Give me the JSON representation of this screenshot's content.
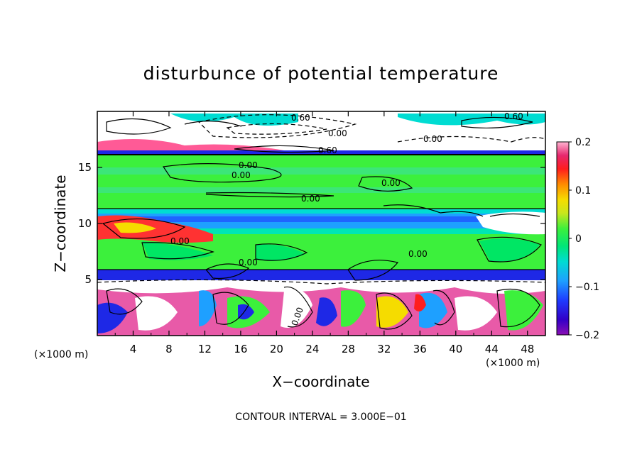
{
  "chart_data": {
    "type": "heatmap",
    "title": "disturbunce of potential temperature",
    "xlabel": "X−coordinate",
    "ylabel": "Z−coordinate",
    "x_unit": "(×1000 m)",
    "xlim": [
      0,
      50
    ],
    "ylim": [
      0,
      20
    ],
    "x_ticks": [
      "4",
      "8",
      "12",
      "16",
      "20",
      "24",
      "28",
      "32",
      "36",
      "40",
      "44",
      "48"
    ],
    "y_ticks": [
      "5",
      "10",
      "15"
    ],
    "colorbar": {
      "range": [
        -0.2,
        0.2
      ],
      "tick_labels": [
        "0.2",
        "0.1",
        "0",
        "−0.1",
        "−0.2"
      ],
      "colors": [
        "#8a0fb4",
        "#4b00b4",
        "#1e1ee6",
        "#1e64ff",
        "#1ea0ff",
        "#00d2e6",
        "#00e6b4",
        "#00e664",
        "#46f03c",
        "#a0e632",
        "#e6e600",
        "#fad200",
        "#ffa000",
        "#ff6400",
        "#ff1e1e",
        "#e6146e",
        "#ff5a96",
        "#ffa0c8"
      ]
    },
    "contour_labels": [
      "0.60",
      "0.00",
      "0.60",
      "0.60",
      "0.00",
      "0.00",
      "0.00",
      "0.00",
      "0.00",
      "0.00",
      "0.00",
      "0.00",
      "0.00"
    ],
    "contour_interval": "CONTOUR INTERVAL = 3.000E−01"
  }
}
